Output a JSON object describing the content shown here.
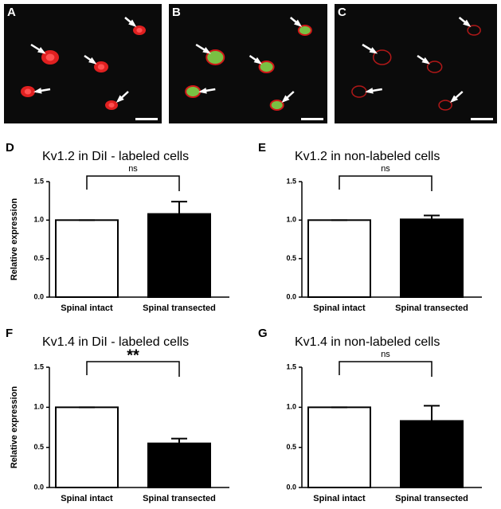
{
  "images": [
    {
      "label": "A"
    },
    {
      "label": "B"
    },
    {
      "label": "C"
    }
  ],
  "chart_data": [
    {
      "type": "bar",
      "panel": "D",
      "title": "Kv1.2 in DiI - labeled cells",
      "ylabel": "Relative expression",
      "categories": [
        "Spinal intact",
        "Spinal transected"
      ],
      "values": [
        1.0,
        1.08
      ],
      "errors": [
        0,
        0.16
      ],
      "colors": [
        "#ffffff",
        "#000000"
      ],
      "ylim": [
        0,
        1.5
      ],
      "yticks": [
        {
          "value": 0,
          "label": "0.0"
        },
        0.5,
        {
          "value": 1,
          "label": "1.0"
        },
        1.5
      ],
      "annotation": "ns"
    },
    {
      "type": "bar",
      "panel": "E",
      "title": "Kv1.2 in non-labeled cells",
      "categories": [
        "Spinal intact",
        "Spinal transected"
      ],
      "values": [
        1.0,
        1.01
      ],
      "errors": [
        0,
        0.05
      ],
      "colors": [
        "#ffffff",
        "#000000"
      ],
      "ylim": [
        0,
        1.5
      ],
      "yticks": [
        {
          "value": 0,
          "label": "0.0"
        },
        0.5,
        {
          "value": 1,
          "label": "1.0"
        },
        1.5
      ],
      "annotation": "ns"
    },
    {
      "type": "bar",
      "panel": "F",
      "title": "Kv1.4 in DiI - labeled cells",
      "ylabel": "Relative expression",
      "categories": [
        "Spinal intact",
        "Spinal transected"
      ],
      "values": [
        1.0,
        0.55
      ],
      "errors": [
        0,
        0.06
      ],
      "colors": [
        "#ffffff",
        "#000000"
      ],
      "ylim": [
        0,
        1.5
      ],
      "yticks": [
        {
          "value": 0,
          "label": "0.0"
        },
        0.5,
        {
          "value": 1,
          "label": "1.0"
        },
        1.5
      ],
      "annotation": "**"
    },
    {
      "type": "bar",
      "panel": "G",
      "title": "Kv1.4 in non-labeled cells",
      "categories": [
        "Spinal intact",
        "Spinal transected"
      ],
      "values": [
        1.0,
        0.83
      ],
      "errors": [
        0,
        0.19
      ],
      "colors": [
        "#ffffff",
        "#000000"
      ],
      "ylim": [
        0,
        1.5
      ],
      "yticks": [
        {
          "value": 0,
          "label": "0.0"
        },
        0.5,
        {
          "value": 1,
          "label": "1.0"
        },
        1.5
      ],
      "annotation": "ns"
    }
  ]
}
